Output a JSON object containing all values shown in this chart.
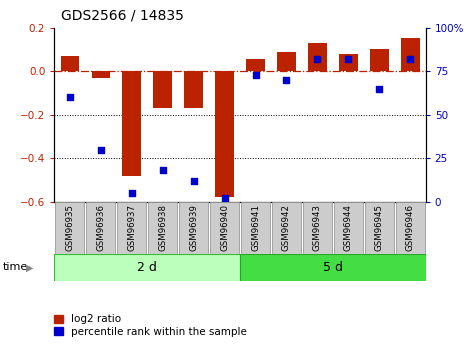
{
  "title": "GDS2566 / 14835",
  "samples": [
    "GSM96935",
    "GSM96936",
    "GSM96937",
    "GSM96938",
    "GSM96939",
    "GSM96940",
    "GSM96941",
    "GSM96942",
    "GSM96943",
    "GSM96944",
    "GSM96945",
    "GSM96946"
  ],
  "log2_ratio": [
    0.07,
    -0.03,
    -0.48,
    -0.17,
    -0.17,
    -0.58,
    0.055,
    0.09,
    0.13,
    0.08,
    0.1,
    0.15
  ],
  "percentile_rank": [
    60,
    30,
    5,
    18,
    12,
    2,
    73,
    70,
    82,
    82,
    65,
    82
  ],
  "bar_color": "#bb2200",
  "dot_color": "#0000cc",
  "ylim_left": [
    -0.6,
    0.2
  ],
  "ylim_right": [
    0,
    100
  ],
  "yticks_left": [
    -0.6,
    -0.4,
    -0.2,
    0.0,
    0.2
  ],
  "yticks_right": [
    0,
    25,
    50,
    75,
    100
  ],
  "group1_label": "2 d",
  "group2_label": "5 d",
  "group1_count": 6,
  "group1_color": "#bbffbb",
  "group2_color": "#44dd44",
  "time_label": "time",
  "legend_items": [
    "log2 ratio",
    "percentile rank within the sample"
  ],
  "hline_y": 0.0,
  "dotted_lines": [
    -0.2,
    -0.4
  ],
  "bar_width": 0.6,
  "sample_box_color": "#cccccc",
  "sample_box_edge": "#999999"
}
